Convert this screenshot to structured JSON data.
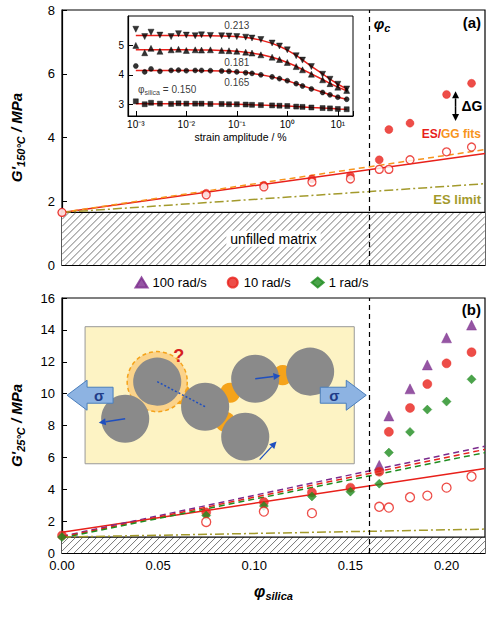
{
  "chart_data": [
    {
      "panel": "(a)",
      "type": "scatter",
      "y_label": [
        "G'",
        "150°C",
        " / MPa"
      ],
      "xlim": [
        0,
        0.22
      ],
      "xticks": [
        {
          "value": 0,
          "label": "0.00"
        },
        0.05,
        {
          "value": 0.1,
          "label": "0.10"
        },
        0.15,
        {
          "value": 0.2,
          "label": "0.20"
        }
      ],
      "ylim": [
        0,
        8
      ],
      "yticks": [
        0,
        2,
        4,
        6,
        8
      ],
      "tick_labels": "y",
      "grid": false,
      "phi_c": 0.16,
      "phi_c_label": [
        "φ",
        "c"
      ],
      "unfilled_matrix": 1.65,
      "unfilled_matrix_label": "unfilled matrix",
      "delta_G_label": "ΔG",
      "fits_label": [
        {
          "text": "ES/",
          "color": "#e8201a"
        },
        {
          "text": "GG",
          "color": "#f7941d"
        },
        {
          "text": " fits",
          "color": "#f7941d"
        }
      ],
      "series": [
        {
          "type": "scatter",
          "marker": "circle",
          "color": "#e8201a",
          "x": [
            0,
            0.075,
            0.105,
            0.13,
            0.15,
            0.165,
            0.17,
            0.181,
            0.2,
            0.213
          ],
          "values": [
            1.65,
            2.25,
            2.5,
            2.7,
            2.8,
            3.3,
            4.25,
            4.45,
            5.35,
            5.7
          ]
        },
        {
          "type": "scatter",
          "marker": "circle-open",
          "color": "#e8201a",
          "x": [
            0,
            0.075,
            0.105,
            0.13,
            0.15,
            0.165,
            0.17,
            0.181,
            0.2,
            0.213
          ],
          "values": [
            1.65,
            2.2,
            2.45,
            2.6,
            2.7,
            3.0,
            3.0,
            3.3,
            3.55,
            3.7
          ]
        },
        {
          "type": "line",
          "line_style": "solid",
          "color": "#e8201a",
          "x": [
            0,
            0.22
          ],
          "values": [
            1.65,
            3.5
          ]
        },
        {
          "type": "line",
          "line_style": "dashed",
          "color": "#f7941d",
          "x": [
            0,
            0.22
          ],
          "values": [
            1.65,
            3.62
          ]
        },
        {
          "type": "line",
          "line_style": "dashdot",
          "color": "#a39a2c",
          "x": [
            0,
            0.22
          ],
          "values": [
            1.65,
            2.55
          ],
          "annotation": "ES limit"
        }
      ]
    },
    {
      "type": "scatter",
      "log": "x",
      "x_label": "strain amplitude / %",
      "xlim": [
        0.0007,
        20
      ],
      "xticks": [
        {
          "value": 0.001,
          "label": "10⁻³"
        },
        {
          "value": 0.01,
          "label": "10⁻²"
        },
        {
          "value": 0.1,
          "label": "10⁻¹"
        },
        {
          "value": 1,
          "label": "10⁰"
        },
        {
          "value": 10,
          "label": "10¹"
        }
      ],
      "ylim": [
        2.6,
        6.0
      ],
      "yticks": [
        3,
        4,
        5
      ],
      "grid": false,
      "series": [
        {
          "type": "scatter",
          "marker": "triangle-down",
          "color": "#000000",
          "label": [
            "0.213"
          ],
          "x": [
            0.001,
            0.0015,
            0.002,
            0.003,
            0.005,
            0.007,
            0.01,
            0.015,
            0.02,
            0.03,
            0.05,
            0.07,
            0.1,
            0.15,
            0.2,
            0.3,
            0.5,
            0.7,
            1,
            1.5,
            2,
            3,
            5,
            7,
            10,
            15
          ],
          "values": [
            5.55,
            5.3,
            5.45,
            5.35,
            5.3,
            5.4,
            5.35,
            5.33,
            5.36,
            5.34,
            5.33,
            5.32,
            5.3,
            5.28,
            5.25,
            5.2,
            5.08,
            4.98,
            4.85,
            4.65,
            4.5,
            4.28,
            4.02,
            3.85,
            3.68,
            3.52
          ]
        },
        {
          "type": "line",
          "line_style": "solid",
          "color": "#e8201a",
          "x": [
            0.001,
            0.0015,
            0.002,
            0.003,
            0.005,
            0.007,
            0.01,
            0.015,
            0.02,
            0.03,
            0.05,
            0.07,
            0.1,
            0.15,
            0.2,
            0.3,
            0.5,
            0.7,
            1,
            1.5,
            2,
            3,
            5,
            7,
            10,
            15
          ],
          "values": [
            5.34,
            5.34,
            5.34,
            5.34,
            5.34,
            5.34,
            5.34,
            5.33,
            5.33,
            5.33,
            5.32,
            5.31,
            5.3,
            5.27,
            5.24,
            5.18,
            5.07,
            4.97,
            4.84,
            4.66,
            4.51,
            4.29,
            4.03,
            3.85,
            3.68,
            3.52
          ]
        },
        {
          "type": "scatter",
          "marker": "triangle",
          "color": "#000000",
          "label": [
            "0.181"
          ],
          "x": [
            0.001,
            0.0015,
            0.002,
            0.003,
            0.005,
            0.007,
            0.01,
            0.015,
            0.02,
            0.03,
            0.05,
            0.07,
            0.1,
            0.15,
            0.2,
            0.3,
            0.5,
            0.7,
            1,
            1.5,
            2,
            3,
            5,
            7,
            10,
            15
          ],
          "values": [
            5.0,
            4.75,
            4.9,
            4.8,
            4.85,
            4.87,
            4.83,
            4.85,
            4.84,
            4.85,
            4.83,
            4.82,
            4.8,
            4.77,
            4.74,
            4.68,
            4.6,
            4.52,
            4.42,
            4.28,
            4.17,
            4.02,
            3.83,
            3.7,
            3.58,
            3.47
          ]
        },
        {
          "type": "line",
          "line_style": "solid",
          "color": "#e8201a",
          "x": [
            0.001,
            0.0015,
            0.002,
            0.003,
            0.005,
            0.007,
            0.01,
            0.015,
            0.02,
            0.03,
            0.05,
            0.07,
            0.1,
            0.15,
            0.2,
            0.3,
            0.5,
            0.7,
            1,
            1.5,
            2,
            3,
            5,
            7,
            10,
            15
          ],
          "values": [
            4.85,
            4.85,
            4.85,
            4.85,
            4.85,
            4.85,
            4.85,
            4.84,
            4.84,
            4.84,
            4.83,
            4.82,
            4.8,
            4.77,
            4.74,
            4.69,
            4.6,
            4.52,
            4.42,
            4.29,
            4.18,
            4.03,
            3.84,
            3.71,
            3.58,
            3.46
          ]
        },
        {
          "type": "scatter",
          "marker": "circle",
          "color": "#000000",
          "label": [
            "0.165"
          ],
          "x": [
            0.001,
            0.0015,
            0.002,
            0.003,
            0.005,
            0.007,
            0.01,
            0.015,
            0.02,
            0.03,
            0.05,
            0.07,
            0.1,
            0.15,
            0.2,
            0.3,
            0.5,
            0.7,
            1,
            1.5,
            2,
            3,
            5,
            7,
            10,
            15
          ],
          "values": [
            4.3,
            4.1,
            4.2,
            4.12,
            4.15,
            4.16,
            4.14,
            4.15,
            4.15,
            4.14,
            4.13,
            4.12,
            4.1,
            4.07,
            4.05,
            4.0,
            3.93,
            3.87,
            3.8,
            3.7,
            3.62,
            3.52,
            3.4,
            3.32,
            3.24,
            3.17
          ]
        },
        {
          "type": "line",
          "line_style": "solid",
          "color": "#e8201a",
          "x": [
            0.001,
            0.0015,
            0.002,
            0.003,
            0.005,
            0.007,
            0.01,
            0.015,
            0.02,
            0.03,
            0.05,
            0.07,
            0.1,
            0.15,
            0.2,
            0.3,
            0.5,
            0.7,
            1,
            1.5,
            2,
            3,
            5,
            7,
            10,
            15
          ],
          "values": [
            4.15,
            4.15,
            4.15,
            4.15,
            4.15,
            4.15,
            4.15,
            4.15,
            4.14,
            4.14,
            4.13,
            4.12,
            4.1,
            4.08,
            4.05,
            4.0,
            3.93,
            3.87,
            3.8,
            3.7,
            3.63,
            3.53,
            3.41,
            3.32,
            3.24,
            3.17
          ]
        },
        {
          "type": "scatter",
          "marker": "square",
          "color": "#000000",
          "label": [
            "φ",
            "silica",
            " = 0.150"
          ],
          "x": [
            0.001,
            0.0015,
            0.002,
            0.003,
            0.005,
            0.007,
            0.01,
            0.015,
            0.02,
            0.03,
            0.05,
            0.07,
            0.1,
            0.15,
            0.2,
            0.3,
            0.5,
            0.7,
            1,
            1.5,
            2,
            3,
            5,
            7,
            10,
            15
          ],
          "values": [
            3.1,
            3.0,
            3.05,
            3.02,
            3.01,
            3.03,
            3.02,
            3.02,
            3.02,
            3.01,
            3.01,
            3.0,
            3.0,
            2.99,
            2.98,
            2.97,
            2.96,
            2.95,
            2.94,
            2.92,
            2.91,
            2.89,
            2.87,
            2.86,
            2.84,
            2.83
          ]
        },
        {
          "type": "line",
          "line_style": "solid",
          "color": "#e8201a",
          "x": [
            0.001,
            0.0015,
            0.002,
            0.003,
            0.005,
            0.007,
            0.01,
            0.015,
            0.02,
            0.03,
            0.05,
            0.07,
            0.1,
            0.15,
            0.2,
            0.3,
            0.5,
            0.7,
            1,
            1.5,
            2,
            3,
            5,
            7,
            10,
            15
          ],
          "values": [
            3.02,
            3.02,
            3.02,
            3.02,
            3.02,
            3.02,
            3.02,
            3.02,
            3.02,
            3.01,
            3.01,
            3.0,
            3.0,
            2.99,
            2.98,
            2.97,
            2.96,
            2.95,
            2.94,
            2.92,
            2.91,
            2.89,
            2.87,
            2.86,
            2.84,
            2.83
          ]
        }
      ]
    },
    {
      "panel": "(b)",
      "type": "scatter",
      "y_label": [
        "G'",
        "25°C",
        " / MPa"
      ],
      "x_label": [
        "φ",
        "silica"
      ],
      "xlim": [
        0,
        0.22
      ],
      "xticks": [
        {
          "value": 0,
          "label": "0.00"
        },
        0.05,
        {
          "value": 0.1,
          "label": "0.10"
        },
        0.15,
        {
          "value": 0.2,
          "label": "0.20"
        }
      ],
      "ylim": [
        0,
        16
      ],
      "yticks": [
        0,
        2,
        4,
        6,
        8,
        10,
        12,
        14,
        16
      ],
      "grid": false,
      "legend": "top",
      "phi_c": 0.16,
      "unfilled_matrix": 1.0,
      "schematic": {
        "stress": "σ",
        "question": "?"
      },
      "series": [
        {
          "name": "100 rad/s",
          "type": "scatter",
          "marker": "triangle",
          "color": "#7b2a8c",
          "x": [
            0.165,
            0.17,
            0.181,
            0.19,
            0.2,
            0.213
          ],
          "values": [
            5.5,
            8.6,
            10.3,
            11.8,
            13.5,
            14.3
          ]
        },
        {
          "name": "10 rad/s",
          "type": "scatter",
          "marker": "circle",
          "color": "#e8201a",
          "x": [
            0,
            0.075,
            0.105,
            0.13,
            0.15,
            0.165,
            0.17,
            0.181,
            0.19,
            0.2,
            0.213
          ],
          "values": [
            1.1,
            2.55,
            3.2,
            3.8,
            4.1,
            5.1,
            7.6,
            9.1,
            10.6,
            11.9,
            12.6
          ]
        },
        {
          "name": "1 rad/s",
          "type": "scatter",
          "marker": "diamond",
          "color": "#1e8c1e",
          "x": [
            0,
            0.075,
            0.105,
            0.13,
            0.15,
            0.165,
            0.17,
            0.181,
            0.19,
            0.2,
            0.213
          ],
          "values": [
            1.0,
            2.35,
            2.95,
            3.55,
            3.85,
            4.35,
            6.3,
            7.6,
            9.0,
            9.5,
            10.9
          ]
        },
        {
          "type": "scatter",
          "marker": "circle-open",
          "color": "#e8201a",
          "x": [
            0.075,
            0.105,
            0.13,
            0.165,
            0.17,
            0.181,
            0.19,
            0.2,
            0.213
          ],
          "values": [
            1.95,
            2.6,
            2.5,
            2.9,
            2.85,
            3.5,
            3.6,
            4.1,
            4.8
          ]
        },
        {
          "type": "line",
          "line_style": "solid",
          "color": "#e8201a",
          "x": [
            0,
            0.22
          ],
          "values": [
            1.3,
            5.3
          ]
        },
        {
          "type": "line",
          "line_style": "dashed",
          "color": "#7b2a8c",
          "x": [
            0,
            0.22
          ],
          "values": [
            1.05,
            6.7
          ]
        },
        {
          "type": "line",
          "line_style": "dashed",
          "color": "#e8201a",
          "x": [
            0,
            0.22
          ],
          "values": [
            1.0,
            6.5
          ]
        },
        {
          "type": "line",
          "line_style": "dashed",
          "color": "#1e8c1e",
          "x": [
            0,
            0.22
          ],
          "values": [
            0.95,
            6.3
          ]
        },
        {
          "type": "line",
          "line_style": "dashdot",
          "color": "#a39a2c",
          "x": [
            0,
            0.22
          ],
          "values": [
            1.0,
            1.5
          ]
        }
      ]
    }
  ]
}
